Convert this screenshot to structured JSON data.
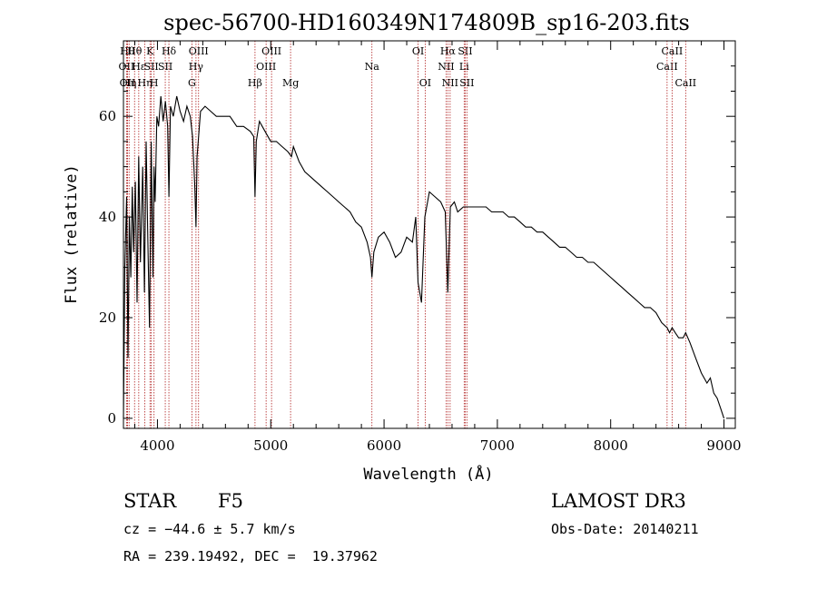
{
  "chart_data": {
    "type": "line",
    "title": "spec-56700-HD160349N174809B_sp16-203.fits",
    "xlabel": "Wavelength (Å)",
    "ylabel": "Flux (relative)",
    "xlim": [
      3700,
      9100
    ],
    "ylim": [
      -2,
      75
    ],
    "xticks": [
      4000,
      5000,
      6000,
      7000,
      8000,
      9000
    ],
    "yticks": [
      0,
      20,
      40,
      60
    ],
    "grid": false,
    "series": [
      {
        "color": "#000000",
        "x": [
          3700,
          3712,
          3728,
          3740,
          3752,
          3765,
          3778,
          3790,
          3805,
          3820,
          3835,
          3850,
          3870,
          3885,
          3900,
          3915,
          3930,
          3945,
          3960,
          3970,
          3980,
          3995,
          4010,
          4030,
          4050,
          4070,
          4090,
          4101,
          4115,
          4140,
          4170,
          4200,
          4230,
          4260,
          4290,
          4310,
          4330,
          4340,
          4350,
          4380,
          4420,
          4470,
          4520,
          4580,
          4640,
          4700,
          4760,
          4820,
          4850,
          4861,
          4872,
          4900,
          4950,
          5000,
          5050,
          5100,
          5150,
          5183,
          5200,
          5250,
          5300,
          5350,
          5400,
          5450,
          5500,
          5550,
          5600,
          5650,
          5700,
          5750,
          5800,
          5850,
          5880,
          5893,
          5910,
          5950,
          6000,
          6050,
          6100,
          6150,
          6200,
          6250,
          6280,
          6300,
          6330,
          6360,
          6400,
          6450,
          6500,
          6540,
          6563,
          6585,
          6620,
          6650,
          6700,
          6750,
          6800,
          6850,
          6900,
          6950,
          7000,
          7050,
          7100,
          7150,
          7200,
          7250,
          7300,
          7350,
          7400,
          7450,
          7500,
          7550,
          7600,
          7650,
          7700,
          7750,
          7800,
          7850,
          7900,
          7950,
          8000,
          8050,
          8100,
          8150,
          8200,
          8250,
          8300,
          8350,
          8400,
          8450,
          8498,
          8520,
          8542,
          8570,
          8600,
          8640,
          8662,
          8700,
          8750,
          8800,
          8850,
          8880,
          8910,
          8940,
          8970,
          9000
        ],
        "y": [
          0,
          30,
          44,
          12,
          40,
          28,
          46,
          33,
          47,
          23,
          52,
          31,
          50,
          25,
          55,
          36,
          18,
          55,
          28,
          50,
          43,
          60,
          58,
          64,
          59,
          63,
          58,
          44,
          62,
          60,
          64,
          61,
          59,
          62,
          60,
          56,
          46,
          38,
          52,
          61,
          62,
          61,
          60,
          60,
          60,
          58,
          58,
          57,
          56,
          44,
          55,
          59,
          57,
          55,
          55,
          54,
          53,
          52,
          54,
          51,
          49,
          48,
          47,
          46,
          45,
          44,
          43,
          42,
          41,
          39,
          38,
          35,
          32,
          28,
          33,
          36,
          37,
          35,
          32,
          33,
          36,
          35,
          40,
          27,
          23,
          40,
          45,
          44,
          43,
          41,
          25,
          42,
          43,
          41,
          42,
          42,
          42,
          42,
          42,
          41,
          41,
          41,
          40,
          40,
          39,
          38,
          38,
          37,
          37,
          36,
          35,
          34,
          34,
          33,
          32,
          32,
          31,
          31,
          30,
          29,
          28,
          27,
          26,
          25,
          24,
          23,
          22,
          22,
          21,
          19,
          18,
          17,
          18,
          17,
          16,
          16,
          17,
          15,
          12,
          9,
          7,
          8,
          5,
          4,
          2,
          0
        ]
      }
    ],
    "lines": [
      {
        "x": 3734,
        "labels": [
          "Hθ"
        ],
        "row": 0
      },
      {
        "x": 3727,
        "labels": [
          "OII"
        ],
        "row": 1
      },
      {
        "x": 3736,
        "labels": [
          "OII"
        ],
        "row": 2
      },
      {
        "x": 3750,
        "labels": [
          "Hη"
        ],
        "row": 2
      },
      {
        "x": 3798,
        "labels": [
          "Hθ"
        ],
        "row": 0
      },
      {
        "x": 3835,
        "labels": [
          "Hε"
        ],
        "row": 1
      },
      {
        "x": 3889,
        "labels": [
          "Hη"
        ],
        "row": 2
      },
      {
        "x": 3934,
        "labels": [
          "K"
        ],
        "row": 0
      },
      {
        "x": 3945,
        "labels": [
          "SII"
        ],
        "row": 1
      },
      {
        "x": 3970,
        "labels": [
          "H"
        ],
        "row": 2
      },
      {
        "x": 4101,
        "labels": [
          "Hδ"
        ],
        "row": 0
      },
      {
        "x": 4069,
        "labels": [
          "SII"
        ],
        "row": 1
      },
      {
        "x": 4304,
        "labels": [
          "G"
        ],
        "row": 2
      },
      {
        "x": 4340,
        "labels": [
          "Hγ"
        ],
        "row": 1
      },
      {
        "x": 4363,
        "labels": [
          "OIII"
        ],
        "row": 0
      },
      {
        "x": 4861,
        "labels": [
          "Hβ"
        ],
        "row": 2
      },
      {
        "x": 4959,
        "labels": [
          "OIII"
        ],
        "row": 1
      },
      {
        "x": 5007,
        "labels": [
          "OIII"
        ],
        "row": 0
      },
      {
        "x": 5175,
        "labels": [
          "Mg"
        ],
        "row": 2
      },
      {
        "x": 5893,
        "labels": [
          "Na"
        ],
        "row": 1
      },
      {
        "x": 6300,
        "labels": [
          "OI"
        ],
        "row": 0
      },
      {
        "x": 6363,
        "labels": [
          "OI"
        ],
        "row": 2
      },
      {
        "x": 6548,
        "labels": [
          "NII"
        ],
        "row": 1
      },
      {
        "x": 6563,
        "labels": [
          "Hα"
        ],
        "row": 0
      },
      {
        "x": 6583,
        "labels": [
          "NII"
        ],
        "row": 2
      },
      {
        "x": 6707,
        "labels": [
          "Li"
        ],
        "row": 1
      },
      {
        "x": 6716,
        "labels": [
          "SII"
        ],
        "row": 0
      },
      {
        "x": 6731,
        "labels": [
          "SII"
        ],
        "row": 2
      },
      {
        "x": 8498,
        "labels": [
          "CaII"
        ],
        "row": 1
      },
      {
        "x": 8542,
        "labels": [
          "CaII"
        ],
        "row": 0
      },
      {
        "x": 8662,
        "labels": [
          "CaII"
        ],
        "row": 2
      }
    ],
    "line_color": "#b02020"
  },
  "info": {
    "object_type": "STAR",
    "subclass": "F5",
    "survey": "LAMOST DR3",
    "cz": "cz = −44.6 ± 5.7 km/s",
    "obs_date": "Obs-Date: 20140211",
    "coords": "RA = 239.19492, DEC =  19.37962"
  }
}
